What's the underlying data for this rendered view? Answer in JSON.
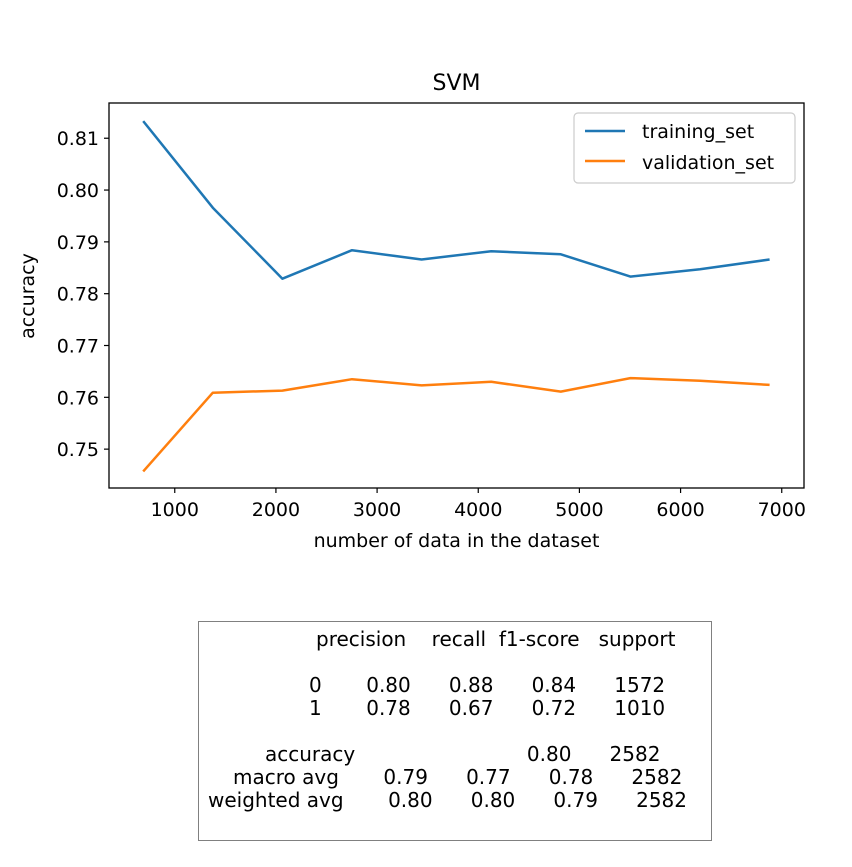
{
  "chart_data": {
    "type": "line",
    "title": "SVM",
    "xlabel": "number of data in the dataset",
    "ylabel": "accuracy",
    "xlim": [
      350,
      7220
    ],
    "ylim": [
      0.7425,
      0.8168
    ],
    "xticks": [
      1000,
      2000,
      3000,
      4000,
      5000,
      6000,
      7000
    ],
    "xtick_labels": [
      "1000",
      "2000",
      "3000",
      "4000",
      "5000",
      "6000",
      "7000"
    ],
    "yticks": [
      0.75,
      0.76,
      0.77,
      0.78,
      0.79,
      0.8,
      0.81
    ],
    "ytick_labels": [
      "0.75",
      "0.76",
      "0.77",
      "0.78",
      "0.79",
      "0.80",
      "0.81"
    ],
    "grid": false,
    "legend_position": "top-right",
    "x": [
      688,
      1376,
      2064,
      2752,
      3440,
      4128,
      4816,
      5504,
      6192,
      6880
    ],
    "series": [
      {
        "name": "training_set",
        "color": "#1f77b4",
        "values": [
          0.8133,
          0.7966,
          0.7829,
          0.7884,
          0.7866,
          0.7882,
          0.7876,
          0.7833,
          0.7847,
          0.7866
        ]
      },
      {
        "name": "validation_set",
        "color": "#ff7f0e",
        "values": [
          0.7457,
          0.7609,
          0.7613,
          0.7635,
          0.7623,
          0.763,
          0.7611,
          0.7637,
          0.7632,
          0.7624
        ]
      }
    ]
  },
  "report": {
    "header": "precision    recall  f1-score   support",
    "row_0": "0       0.80      0.88      0.84      1572",
    "row_1": "1       0.78      0.67      0.72      1010",
    "accuracy": "accuracy                           0.80      2582",
    "macro_avg": "macro avg       0.79      0.77      0.78      2582",
    "weighted_avg": "weighted avg       0.80      0.80      0.79      2582"
  }
}
